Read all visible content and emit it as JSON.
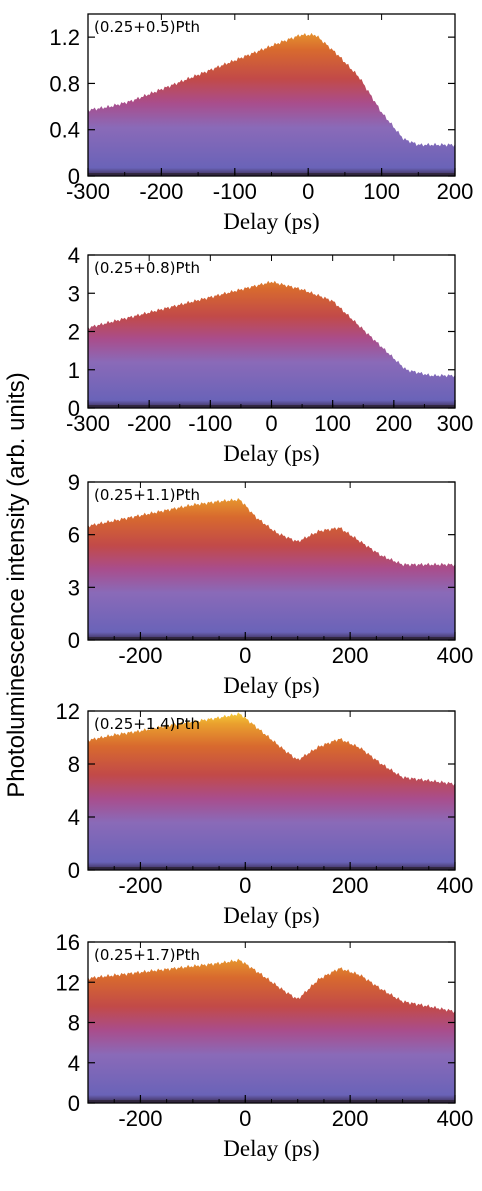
{
  "figure": {
    "ylabel": "Photoluminescence intensity (arb. units)"
  },
  "chart_data": [
    {
      "type": "area",
      "panel_label": "(0.25+0.5)Pth",
      "xlabel": "Delay (ps)",
      "xlim": [
        -300,
        200
      ],
      "ylim": [
        0,
        1.4
      ],
      "xticks": [
        -300,
        -200,
        -100,
        0,
        100,
        200
      ],
      "yticks": [
        0,
        0.4,
        0.8,
        1.2
      ],
      "ytick_labels": [
        "0",
        "0.4",
        "0.8",
        "1.2"
      ],
      "envelope": {
        "x": [
          -300,
          -270,
          -240,
          -200,
          -160,
          -120,
          -80,
          -40,
          -10,
          10,
          40,
          70,
          100,
          130,
          150,
          160,
          200
        ],
        "y": [
          0.57,
          0.6,
          0.65,
          0.75,
          0.85,
          0.95,
          1.05,
          1.15,
          1.22,
          1.22,
          1.05,
          0.85,
          0.55,
          0.32,
          0.27,
          0.27,
          0.27
        ]
      }
    },
    {
      "type": "area",
      "panel_label": "(0.25+0.8)Pth",
      "xlabel": "Delay (ps)",
      "xlim": [
        -300,
        300
      ],
      "ylim": [
        0,
        4
      ],
      "xticks": [
        -300,
        -200,
        -100,
        0,
        100,
        200,
        300
      ],
      "yticks": [
        0,
        1,
        2,
        3,
        4
      ],
      "ytick_labels": [
        "0",
        "1",
        "2",
        "3",
        "4"
      ],
      "envelope": {
        "x": [
          -300,
          -250,
          -200,
          -150,
          -100,
          -50,
          0,
          50,
          100,
          140,
          180,
          220,
          260,
          300
        ],
        "y": [
          2.1,
          2.3,
          2.5,
          2.7,
          2.9,
          3.1,
          3.3,
          3.1,
          2.8,
          2.2,
          1.6,
          1.0,
          0.85,
          0.85
        ]
      }
    },
    {
      "type": "area",
      "panel_label": "(0.25+1.1)Pth",
      "xlabel": "Delay (ps)",
      "xlim": [
        -300,
        400
      ],
      "ylim": [
        0,
        9
      ],
      "xticks": [
        -200,
        0,
        200,
        400
      ],
      "yticks": [
        0,
        3,
        6,
        9
      ],
      "ytick_labels": [
        "0",
        "3",
        "6",
        "9"
      ],
      "envelope": {
        "x": [
          -300,
          -250,
          -200,
          -150,
          -100,
          -50,
          -10,
          20,
          60,
          100,
          140,
          180,
          220,
          260,
          300,
          400
        ],
        "y": [
          6.5,
          6.8,
          7.1,
          7.4,
          7.7,
          7.9,
          8.0,
          7.0,
          6.1,
          5.6,
          6.2,
          6.4,
          5.6,
          4.8,
          4.3,
          4.3
        ]
      }
    },
    {
      "type": "area",
      "panel_label": "(0.25+1.4)Pth",
      "xlabel": "Delay (ps)",
      "xlim": [
        -300,
        400
      ],
      "ylim": [
        0,
        12
      ],
      "xticks": [
        -200,
        0,
        200,
        400
      ],
      "yticks": [
        0,
        4,
        8,
        12
      ],
      "ytick_labels": [
        "0",
        "4",
        "8",
        "12"
      ],
      "envelope": {
        "x": [
          -300,
          -250,
          -200,
          -150,
          -100,
          -50,
          -10,
          30,
          70,
          100,
          140,
          180,
          220,
          260,
          300,
          400
        ],
        "y": [
          9.8,
          10.2,
          10.5,
          10.9,
          11.2,
          11.5,
          11.8,
          10.5,
          9.2,
          8.3,
          9.3,
          9.9,
          9.2,
          8.0,
          7.0,
          6.5
        ]
      }
    },
    {
      "type": "area",
      "panel_label": "(0.25+1.7)Pth",
      "xlabel": "Delay (ps)",
      "xlim": [
        -300,
        400
      ],
      "ylim": [
        0,
        16
      ],
      "xticks": [
        -200,
        0,
        200,
        400
      ],
      "yticks": [
        0,
        4,
        8,
        12,
        16
      ],
      "ytick_labels": [
        "0",
        "4",
        "8",
        "12",
        "16"
      ],
      "envelope": {
        "x": [
          -300,
          -250,
          -200,
          -150,
          -100,
          -50,
          -10,
          30,
          70,
          100,
          140,
          180,
          220,
          260,
          300,
          400
        ],
        "y": [
          12.4,
          12.7,
          13.0,
          13.3,
          13.6,
          13.9,
          14.2,
          12.8,
          11.3,
          10.3,
          12.3,
          13.4,
          12.7,
          11.3,
          10.1,
          9.1
        ]
      }
    }
  ]
}
